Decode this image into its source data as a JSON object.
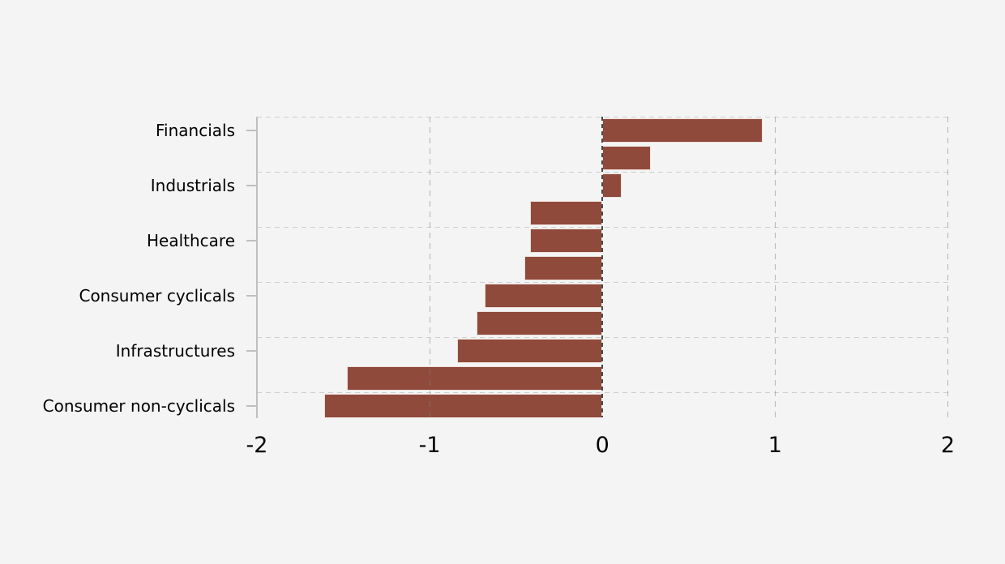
{
  "figure": {
    "background_color": "#f4f4f4"
  },
  "chart_data": {
    "type": "bar",
    "orientation": "horizontal",
    "title": "",
    "xlabel": "",
    "ylabel": "",
    "xlim": [
      -2,
      2
    ],
    "x_ticks": [
      "-2",
      "-1",
      "0",
      "1",
      "2"
    ],
    "x_tick_values": [
      -2,
      -1,
      0,
      1,
      2
    ],
    "grid": true,
    "legend_position": "none",
    "bar_color": "#8f4a3c",
    "bar_border_color": "#efe0db",
    "zero_line_color": "#323232",
    "grid_color": "#cfcfcf",
    "axis_color": "#bfbfbf",
    "text_color": "#000000",
    "categories": [
      "Financials",
      "Industrials",
      "Healthcare",
      "Consumer cyclicals",
      "Infrastructures",
      "Consumer non-cyclicals"
    ],
    "groups": [
      {
        "label": "Financials",
        "values": [
          0.93,
          0.28
        ]
      },
      {
        "label": "Industrials",
        "values": [
          0.11,
          -0.42
        ]
      },
      {
        "label": "Healthcare",
        "values": [
          -0.42,
          -0.45
        ]
      },
      {
        "label": "Consumer cyclicals",
        "values": [
          -0.68,
          -0.73
        ]
      },
      {
        "label": "Infrastructures",
        "values": [
          -0.84,
          -1.48
        ]
      },
      {
        "label": "Consumer non-cyclicals",
        "values": [
          -1.61
        ]
      }
    ]
  }
}
